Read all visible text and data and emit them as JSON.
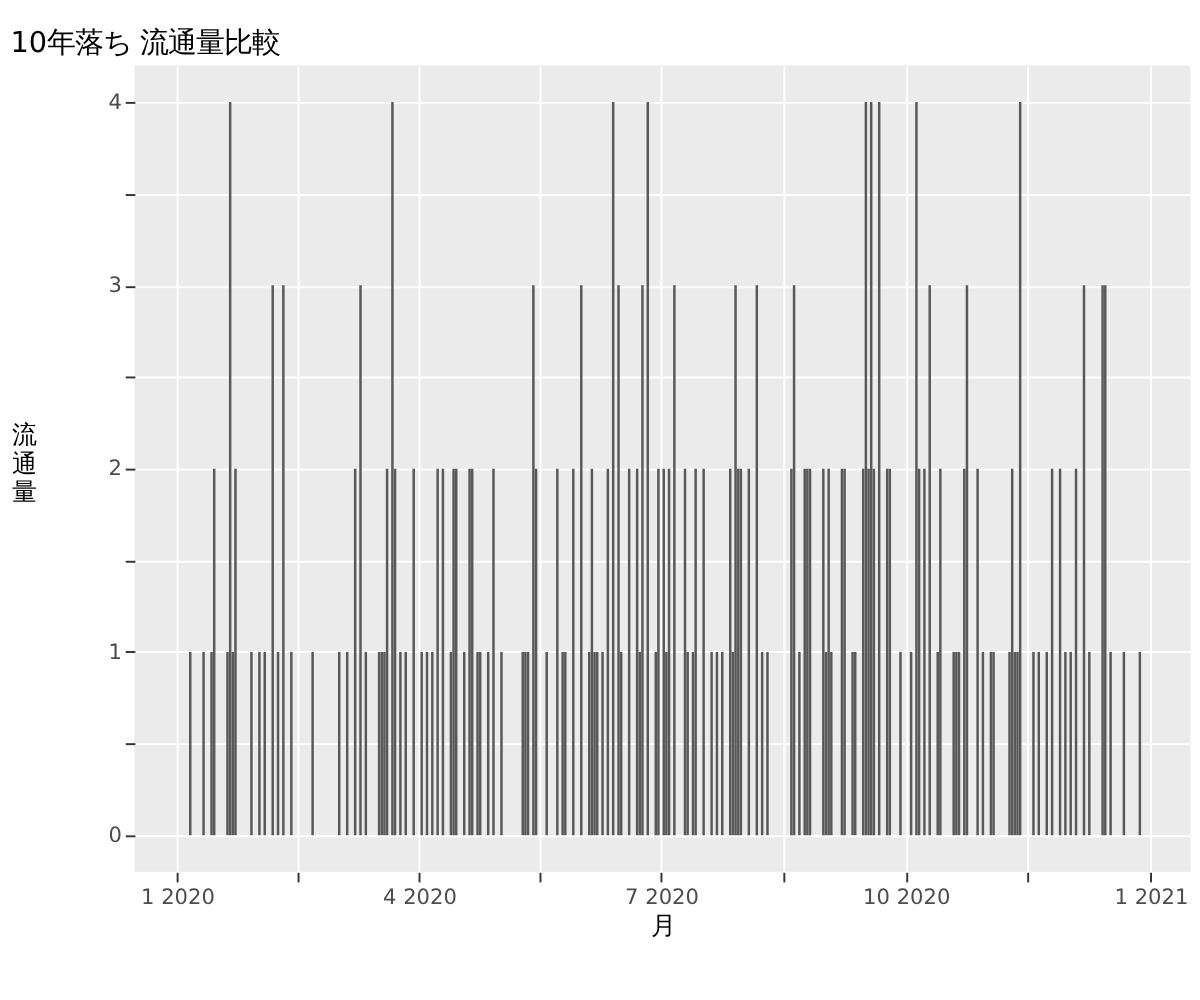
{
  "chart_data": {
    "type": "bar",
    "title": "10年落ち 流通量比較",
    "xlabel": "月",
    "ylabel": "流通量",
    "color": "#595959",
    "grid": true,
    "x": [
      "2020-01-06",
      "2020-01-11",
      "2020-01-14",
      "2020-01-15",
      "2020-01-20",
      "2020-01-21",
      "2020-01-22",
      "2020-01-23",
      "2020-01-29",
      "2020-02-01",
      "2020-02-03",
      "2020-02-06",
      "2020-02-08",
      "2020-02-10",
      "2020-02-13",
      "2020-02-21",
      "2020-03-02",
      "2020-03-05",
      "2020-03-08",
      "2020-03-10",
      "2020-03-12",
      "2020-03-17",
      "2020-03-18",
      "2020-03-19",
      "2020-03-20",
      "2020-03-22",
      "2020-03-23",
      "2020-03-25",
      "2020-03-27",
      "2020-03-30",
      "2020-04-02",
      "2020-04-04",
      "2020-04-06",
      "2020-04-08",
      "2020-04-10",
      "2020-04-13",
      "2020-04-14",
      "2020-04-15",
      "2020-04-18",
      "2020-04-20",
      "2020-04-21",
      "2020-04-23",
      "2020-04-24",
      "2020-04-27",
      "2020-04-29",
      "2020-05-02",
      "2020-05-10",
      "2020-05-11",
      "2020-05-12",
      "2020-05-14",
      "2020-05-15",
      "2020-05-19",
      "2020-05-23",
      "2020-05-25",
      "2020-05-26",
      "2020-05-29",
      "2020-06-01",
      "2020-06-04",
      "2020-06-05",
      "2020-06-06",
      "2020-06-07",
      "2020-06-09",
      "2020-06-11",
      "2020-06-13",
      "2020-06-15",
      "2020-06-16",
      "2020-06-19",
      "2020-06-22",
      "2020-06-23",
      "2020-06-24",
      "2020-06-26",
      "2020-06-29",
      "2020-06-30",
      "2020-07-02",
      "2020-07-03",
      "2020-07-04",
      "2020-07-06",
      "2020-07-10",
      "2020-07-11",
      "2020-07-13",
      "2020-07-14",
      "2020-07-17",
      "2020-07-20",
      "2020-07-22",
      "2020-07-24",
      "2020-07-27",
      "2020-07-28",
      "2020-07-29",
      "2020-07-30",
      "2020-07-31",
      "2020-08-03",
      "2020-08-06",
      "2020-08-08",
      "2020-08-10",
      "2020-08-19",
      "2020-08-20",
      "2020-08-22",
      "2020-08-24",
      "2020-08-25",
      "2020-08-26",
      "2020-08-31",
      "2020-09-01",
      "2020-09-02",
      "2020-09-03",
      "2020-09-07",
      "2020-09-08",
      "2020-09-11",
      "2020-09-12",
      "2020-09-15",
      "2020-09-16",
      "2020-09-17",
      "2020-09-18",
      "2020-09-19",
      "2020-09-21",
      "2020-09-24",
      "2020-09-25",
      "2020-09-29",
      "2020-10-03",
      "2020-10-05",
      "2020-10-06",
      "2020-10-08",
      "2020-10-10",
      "2020-10-13",
      "2020-10-14",
      "2020-10-19",
      "2020-10-20",
      "2020-10-21",
      "2020-10-23",
      "2020-10-24",
      "2020-10-28",
      "2020-10-30",
      "2020-11-02",
      "2020-11-03",
      "2020-11-09",
      "2020-11-10",
      "2020-11-11",
      "2020-11-12",
      "2020-11-13",
      "2020-11-18",
      "2020-11-20",
      "2020-11-23",
      "2020-11-25",
      "2020-11-28",
      "2020-11-30",
      "2020-12-02",
      "2020-12-04",
      "2020-12-07",
      "2020-12-09",
      "2020-12-14",
      "2020-12-15",
      "2020-12-17",
      "2020-12-22",
      "2020-12-28"
    ],
    "values": [
      1,
      1,
      1,
      2,
      1,
      4,
      1,
      2,
      1,
      1,
      1,
      3,
      1,
      3,
      1,
      1,
      1,
      1,
      2,
      3,
      1,
      1,
      1,
      1,
      2,
      4,
      2,
      1,
      1,
      2,
      1,
      1,
      1,
      2,
      2,
      1,
      2,
      2,
      1,
      2,
      2,
      1,
      1,
      1,
      2,
      1,
      1,
      1,
      1,
      3,
      2,
      1,
      2,
      1,
      1,
      2,
      3,
      1,
      2,
      1,
      1,
      1,
      2,
      4,
      3,
      1,
      2,
      2,
      1,
      3,
      4,
      1,
      2,
      2,
      1,
      2,
      3,
      2,
      1,
      1,
      2,
      2,
      1,
      1,
      1,
      2,
      1,
      3,
      2,
      2,
      2,
      3,
      1,
      1,
      2,
      3,
      1,
      2,
      2,
      2,
      2,
      1,
      2,
      1,
      2,
      2,
      1,
      1,
      2,
      4,
      2,
      4,
      2,
      4,
      2,
      2,
      1,
      1,
      4,
      2,
      2,
      3,
      1,
      2,
      1,
      1,
      1,
      2,
      3,
      2,
      1,
      1,
      1,
      1,
      2,
      1,
      1,
      4,
      1,
      1,
      1,
      2,
      2,
      1,
      1,
      2,
      3,
      1,
      3,
      3,
      1,
      1,
      1
    ],
    "xlim": [
      "2019-12-16",
      "2021-01-16"
    ],
    "xticks": [
      {
        "value": "2020-01-01",
        "label": "1 2020"
      },
      {
        "value": "2020-02-15T12:00",
        "label": null
      },
      {
        "value": "2020-04-01",
        "label": "4 2020"
      },
      {
        "value": "2020-05-16T12:00",
        "label": null
      },
      {
        "value": "2020-07-01",
        "label": "7 2020"
      },
      {
        "value": "2020-08-16",
        "label": null
      },
      {
        "value": "2020-10-01",
        "label": "10 2020"
      },
      {
        "value": "2020-11-16",
        "label": null
      },
      {
        "value": "2021-01-01",
        "label": "1 2021"
      }
    ],
    "ylim": [
      -0.2,
      4.2
    ],
    "yticks": [
      0,
      {
        "value": 0.5,
        "label": null
      },
      1,
      {
        "value": 1.5,
        "label": null
      },
      2,
      {
        "value": 2.5,
        "label": null
      },
      3,
      {
        "value": 3.5,
        "label": null
      },
      4
    ]
  }
}
